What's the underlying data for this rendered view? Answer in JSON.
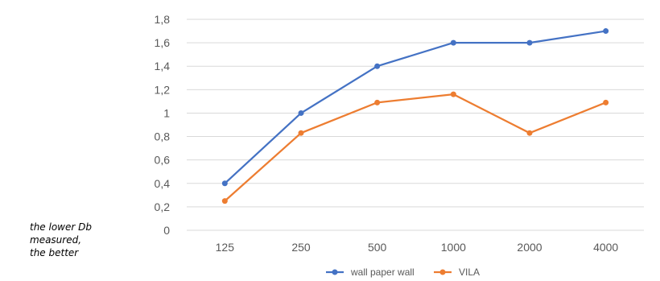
{
  "note_lines": [
    "the lower Db",
    "measured,",
    "the better"
  ],
  "chart_data": {
    "type": "line",
    "title": "",
    "xlabel": "",
    "ylabel": "",
    "categories": [
      "125",
      "250",
      "500",
      "1000",
      "2000",
      "4000"
    ],
    "y_ticks": [
      "0",
      "0,2",
      "0,4",
      "0,6",
      "0,8",
      "1",
      "1,2",
      "1,4",
      "1,6",
      "1,8"
    ],
    "ylim": [
      0,
      1.8
    ],
    "grid": true,
    "legend_position": "bottom",
    "series": [
      {
        "name": "wall paper wall",
        "color": "#4472c4",
        "values": [
          0.4,
          1.0,
          1.4,
          1.6,
          1.6,
          1.7
        ]
      },
      {
        "name": "VILA",
        "color": "#ed7d31",
        "values": [
          0.25,
          0.83,
          1.09,
          1.16,
          0.83,
          1.09
        ]
      }
    ],
    "gridline_color": "#d9d9d9",
    "tick_color": "#595959"
  }
}
